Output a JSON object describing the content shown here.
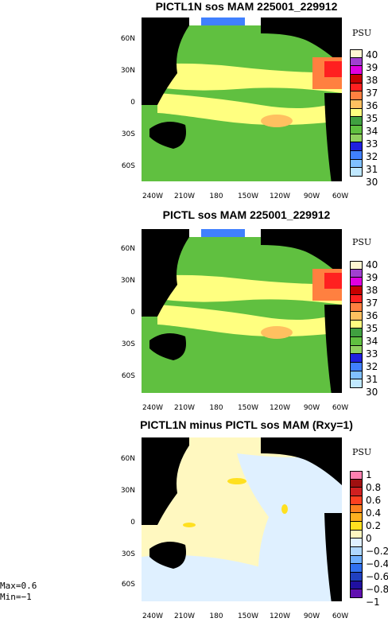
{
  "panels": [
    {
      "title": "PICTL1N sos MAM 225001_229912",
      "unit": "PSU",
      "colorbar_labels": [
        "40",
        "39",
        "38",
        "37",
        "36",
        "35",
        "34",
        "33",
        "32",
        "31",
        "30"
      ],
      "colorbar_colors": [
        "#fff6d2",
        "#a040d0",
        "#e000e0",
        "#c80000",
        "#ff2020",
        "#ff8040",
        "#ffc060",
        "#ffff80",
        "#40a040",
        "#60c040",
        "#90d060",
        "#2020e0",
        "#4080ff",
        "#80c0ff",
        "#c0e8ff"
      ]
    },
    {
      "title": "PICTL sos MAM 225001_229912",
      "unit": "PSU",
      "colorbar_labels": [
        "40",
        "39",
        "38",
        "37",
        "36",
        "35",
        "34",
        "33",
        "32",
        "31",
        "30"
      ],
      "colorbar_colors": [
        "#fff6d2",
        "#a040d0",
        "#e000e0",
        "#c80000",
        "#ff2020",
        "#ff8040",
        "#ffc060",
        "#ffff80",
        "#40a040",
        "#60c040",
        "#90d060",
        "#2020e0",
        "#4080ff",
        "#80c0ff",
        "#c0e8ff"
      ]
    },
    {
      "title": "PICTL1N minus PICTL sos MAM (Rxy=1)",
      "unit": "PSU",
      "colorbar_labels": [
        "1",
        "0.8",
        "0.6",
        "0.4",
        "0.2",
        "0",
        "−0.2",
        "−0.4",
        "−0.6",
        "−0.8",
        "−1"
      ],
      "colorbar_colors": [
        "#ff80b0",
        "#a01010",
        "#d02020",
        "#ff4020",
        "#ff8020",
        "#ffb020",
        "#ffe020",
        "#fff8c0",
        "#dff0ff",
        "#b0d8ff",
        "#70b0ff",
        "#3070f0",
        "#2040c0",
        "#2010a0",
        "#6010b0"
      ]
    }
  ],
  "lat_labels": [
    "60N",
    "30N",
    "0",
    "30S",
    "60S"
  ],
  "lon_labels": [
    "240W",
    "210W",
    "180",
    "150W",
    "120W",
    "90W",
    "60W"
  ],
  "stats": {
    "max": "Max=0.6",
    "min": "Min=−1"
  }
}
